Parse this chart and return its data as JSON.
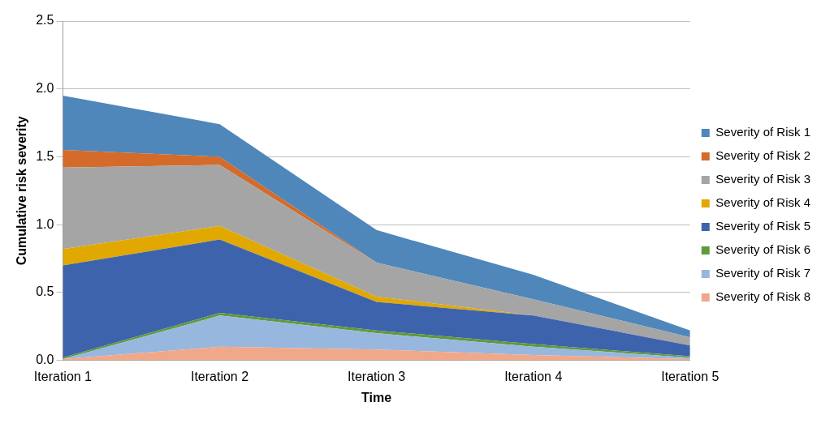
{
  "chart_data": {
    "type": "area",
    "stacked": true,
    "xlabel": "Time",
    "ylabel": "Cumulative risk severity",
    "categories": [
      "Iteration 1",
      "Iteration 2",
      "Iteration 3",
      "Iteration 4",
      "Iteration 5"
    ],
    "ylim": [
      0,
      2.5
    ],
    "yticks": [
      {
        "value": 0,
        "label": "0.0"
      },
      {
        "value": 0.5,
        "label": "0.5"
      },
      {
        "value": 1,
        "label": "1.0"
      },
      {
        "value": 1.5,
        "label": "1.5"
      },
      {
        "value": 2,
        "label": "2.0"
      },
      {
        "value": 2.5,
        "label": "2.5"
      }
    ],
    "grid": "y",
    "legend": "right",
    "series": [
      {
        "name": "Severity of Risk 8",
        "color": "#f0a88a",
        "values": [
          0.01,
          0.1,
          0.08,
          0.04,
          0.01
        ]
      },
      {
        "name": "Severity of Risk 7",
        "color": "#98b7de",
        "values": [
          0,
          0.23,
          0.12,
          0.06,
          0.01
        ]
      },
      {
        "name": "Severity of Risk 6",
        "color": "#5f9a3b",
        "values": [
          0.01,
          0.02,
          0.02,
          0.02,
          0.01
        ]
      },
      {
        "name": "Severity of Risk 5",
        "color": "#3e63ad",
        "values": [
          0.68,
          0.54,
          0.21,
          0.21,
          0.08
        ]
      },
      {
        "name": "Severity of Risk 4",
        "color": "#e0a800",
        "values": [
          0.12,
          0.1,
          0.04,
          0,
          0
        ]
      },
      {
        "name": "Severity of Risk 3",
        "color": "#a5a5a5",
        "values": [
          0.6,
          0.45,
          0.25,
          0.12,
          0.06
        ]
      },
      {
        "name": "Severity of Risk 2",
        "color": "#d46b2a",
        "values": [
          0.13,
          0.06,
          0,
          0,
          0
        ]
      },
      {
        "name": "Severity of Risk 1",
        "color": "#4f87bb",
        "values": [
          0.4,
          0.24,
          0.24,
          0.18,
          0.05
        ]
      }
    ]
  }
}
